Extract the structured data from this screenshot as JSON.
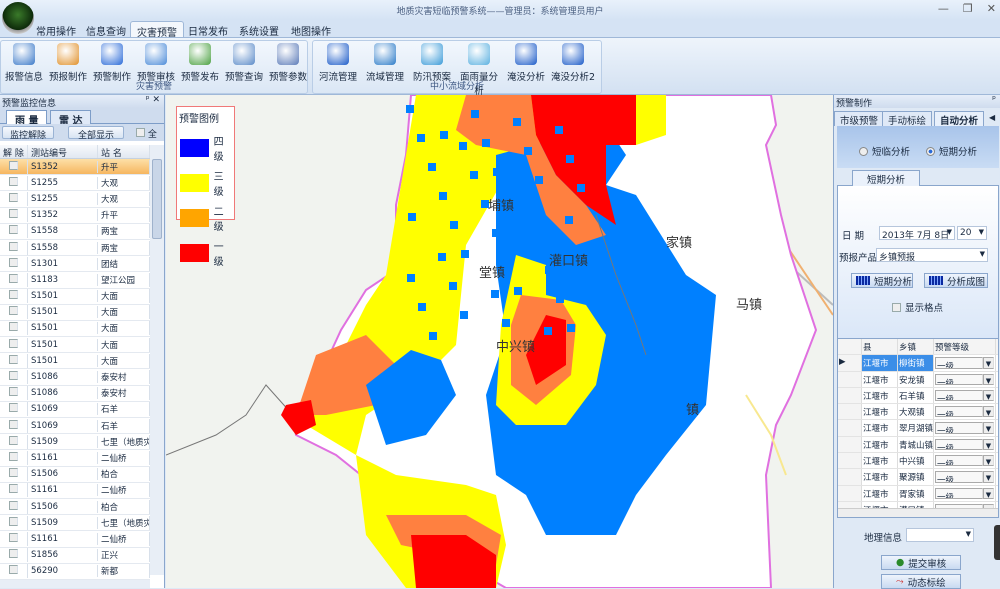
{
  "window": {
    "title": "地质灾害短临预警系统——管理员：系统管理员用户",
    "controls": [
      "minimize",
      "restore",
      "close"
    ]
  },
  "menu": {
    "tabs": [
      "常用操作",
      "信息查询",
      "灾害预警",
      "日常发布",
      "系统设置",
      "地图操作"
    ],
    "active": "灾害预警"
  },
  "ribbon": {
    "groups": [
      {
        "title": "灾害预警",
        "buttons": [
          {
            "label": "报警信息",
            "icon": "alarm-info-icon",
            "color": "#3a78c8"
          },
          {
            "label": "预报制作",
            "icon": "weather-forecast-icon",
            "color": "#e0902a"
          },
          {
            "label": "预警制作",
            "icon": "camera-icon",
            "color": "#2a6ad8"
          },
          {
            "label": "预警审核",
            "icon": "review-icon",
            "color": "#4a8ad8"
          },
          {
            "label": "预警发布",
            "icon": "publish-icon",
            "color": "#4aa040"
          },
          {
            "label": "预警查询",
            "icon": "magnifier-icon",
            "color": "#5a8ac8"
          },
          {
            "label": "预警参数",
            "icon": "table-icon",
            "color": "#5a7ab8"
          }
        ]
      },
      {
        "title": "中小流域分析",
        "buttons": [
          {
            "label": "河流管理",
            "icon": "water-drop-icon",
            "color": "#1a5ac8"
          },
          {
            "label": "流域管理",
            "icon": "wave-icon",
            "color": "#2a7ac8"
          },
          {
            "label": "防汛预案",
            "icon": "globe-water-icon",
            "color": "#3a9ad8"
          },
          {
            "label": "面雨量分析",
            "icon": "splash-icon",
            "color": "#5ab0e0"
          },
          {
            "label": "淹没分析",
            "icon": "water-drop-icon",
            "color": "#1a5ac8"
          },
          {
            "label": "淹没分析2",
            "icon": "water-drop-icon",
            "color": "#1a5ac8"
          }
        ]
      }
    ]
  },
  "left_panel": {
    "title": "预警监控信息",
    "tabs": [
      "雨 量",
      "雷 达"
    ],
    "active_tab": "雨 量",
    "buttons": [
      "监控解除",
      "全部显示"
    ],
    "select_all_label": "全",
    "columns": [
      "解 除",
      "测站编号",
      "站 名"
    ],
    "rows": [
      [
        "S1352",
        "升平"
      ],
      [
        "S1255",
        "大观"
      ],
      [
        "S1255",
        "大观"
      ],
      [
        "S1352",
        "升平"
      ],
      [
        "S1558",
        "两宝"
      ],
      [
        "S1558",
        "两宝"
      ],
      [
        "S1301",
        "团结"
      ],
      [
        "S1183",
        "望江公园"
      ],
      [
        "S1501",
        "大面"
      ],
      [
        "S1501",
        "大面"
      ],
      [
        "S1501",
        "大面"
      ],
      [
        "S1501",
        "大面"
      ],
      [
        "S1501",
        "大面"
      ],
      [
        "S1086",
        "泰安村"
      ],
      [
        "S1086",
        "泰安村"
      ],
      [
        "S1069",
        "石羊"
      ],
      [
        "S1069",
        "石羊"
      ],
      [
        "S1509",
        "七里（地质灾"
      ],
      [
        "S1161",
        "二仙桥"
      ],
      [
        "S1506",
        "柏合"
      ],
      [
        "S1161",
        "二仙桥"
      ],
      [
        "S1506",
        "柏合"
      ],
      [
        "S1509",
        "七里（地质灾"
      ],
      [
        "S1161",
        "二仙桥"
      ],
      [
        "S1856",
        "正兴"
      ],
      [
        "56290",
        "新都"
      ]
    ],
    "selected_row": 0
  },
  "map": {
    "legend": {
      "title": "预警图例",
      "items": [
        {
          "label": "四级",
          "color": "#0000ff"
        },
        {
          "label": "三级",
          "color": "#ffff00"
        },
        {
          "label": "二级",
          "color": "#ffa500"
        },
        {
          "label": "一级",
          "color": "#ff0000"
        }
      ]
    },
    "towns": [
      "埔镇",
      "灌口镇",
      "堂镇",
      "家镇",
      "马镇",
      "中兴镇",
      "镇"
    ],
    "grid_colors": {
      "level4": "#0080ff",
      "level3": "#ffff00",
      "level2": "#ff8040",
      "level1": "#ff0000"
    }
  },
  "right_panel": {
    "title": "预警制作",
    "tabs": [
      "市级预警",
      "手动标绘",
      "自动分析"
    ],
    "active_tab": "自动分析",
    "radios": [
      {
        "label": "短临分析",
        "checked": false
      },
      {
        "label": "短期分析",
        "checked": true
      }
    ],
    "subtab": "短期分析",
    "date_label": "日  期",
    "date_value": "2013年 7月 8日",
    "hour_value": "20",
    "product_label": "预报产品",
    "product_value": "乡镇预报",
    "buttons": [
      "短期分析",
      "分析成图"
    ],
    "show_grid_label": "显示格点",
    "grid_columns": [
      "县",
      "乡镇",
      "预警等级"
    ],
    "grid_rows": [
      [
        "江堰市",
        "柳街镇",
        "一级"
      ],
      [
        "江堰市",
        "安龙镇",
        "一级"
      ],
      [
        "江堰市",
        "石羊镇",
        "一级"
      ],
      [
        "江堰市",
        "大观镇",
        "一级"
      ],
      [
        "江堰市",
        "翠月湖镇",
        "一级"
      ],
      [
        "江堰市",
        "青城山镇",
        "一级"
      ],
      [
        "江堰市",
        "中兴镇",
        "一级"
      ],
      [
        "江堰市",
        "聚源镇",
        "一级"
      ],
      [
        "江堰市",
        "胥家镇",
        "一级"
      ],
      [
        "江堰市",
        "灌口镇",
        "一级"
      ]
    ],
    "geo_label": "地理信息",
    "geo_value": "",
    "submit_label": "提交审核",
    "dynamic_label": "动态标绘"
  }
}
